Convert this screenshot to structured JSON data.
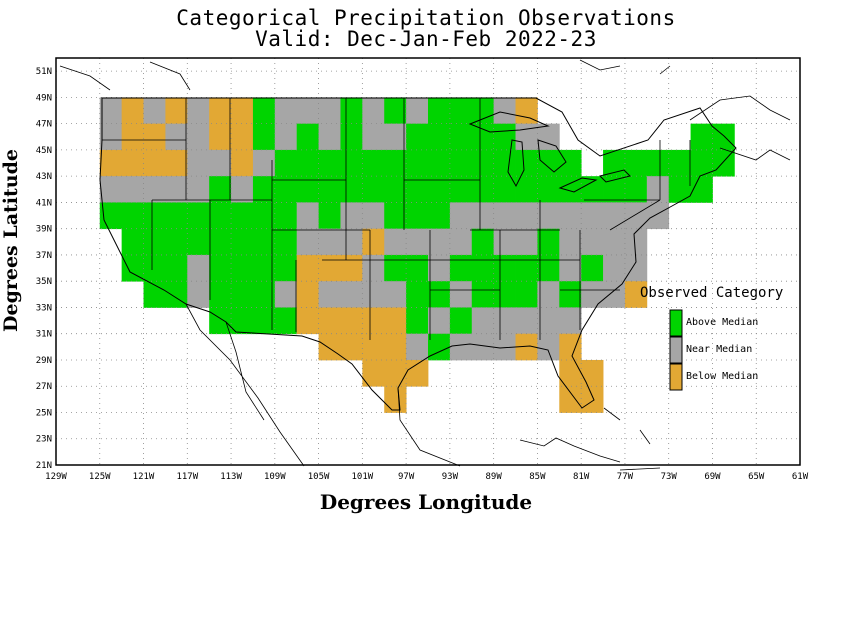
{
  "title_line1": "Categorical Precipitation Observations",
  "title_line2": "Valid: Dec-Jan-Feb 2022-23",
  "xlabel": "Degrees Longitude",
  "ylabel": "Degrees Latitude",
  "x_ticks": [
    "129W",
    "125W",
    "121W",
    "117W",
    "113W",
    "109W",
    "105W",
    "101W",
    "97W",
    "93W",
    "89W",
    "85W",
    "81W",
    "77W",
    "73W",
    "69W",
    "65W",
    "61W"
  ],
  "y_ticks": [
    "51N",
    "49N",
    "47N",
    "45N",
    "43N",
    "41N",
    "39N",
    "37N",
    "35N",
    "33N",
    "31N",
    "29N",
    "27N",
    "25N",
    "23N",
    "21N"
  ],
  "legend": {
    "title": "Observed Category",
    "items": [
      {
        "label": "Above Median",
        "color": "#00d400"
      },
      {
        "label": "Near Median",
        "color": "#a6a6a6"
      },
      {
        "label": "Below Median",
        "color": "#e2a834"
      }
    ]
  },
  "chart_data": {
    "type": "heatmap",
    "grid_resolution_deg": 2,
    "lon_range": [
      -129,
      -61
    ],
    "lat_range": [
      21,
      52
    ],
    "categories": {
      "A": "Above Median",
      "N": "Near Median",
      "B": "Below Median"
    },
    "cells": [
      {
        "lat": 48,
        "lon": -124,
        "cat": "N"
      },
      {
        "lat": 48,
        "lon": -122,
        "cat": "B"
      },
      {
        "lat": 48,
        "lon": -120,
        "cat": "N"
      },
      {
        "lat": 48,
        "lon": -118,
        "cat": "B"
      },
      {
        "lat": 48,
        "lon": -116,
        "cat": "N"
      },
      {
        "lat": 48,
        "lon": -114,
        "cat": "B"
      },
      {
        "lat": 48,
        "lon": -112,
        "cat": "B"
      },
      {
        "lat": 48,
        "lon": -110,
        "cat": "A"
      },
      {
        "lat": 48,
        "lon": -108,
        "cat": "N"
      },
      {
        "lat": 48,
        "lon": -106,
        "cat": "N"
      },
      {
        "lat": 48,
        "lon": -104,
        "cat": "N"
      },
      {
        "lat": 48,
        "lon": -102,
        "cat": "A"
      },
      {
        "lat": 48,
        "lon": -100,
        "cat": "N"
      },
      {
        "lat": 48,
        "lon": -98,
        "cat": "A"
      },
      {
        "lat": 48,
        "lon": -96,
        "cat": "N"
      },
      {
        "lat": 48,
        "lon": -94,
        "cat": "A"
      },
      {
        "lat": 48,
        "lon": -92,
        "cat": "A"
      },
      {
        "lat": 48,
        "lon": -90,
        "cat": "A"
      },
      {
        "lat": 48,
        "lon": -88,
        "cat": "N"
      },
      {
        "lat": 48,
        "lon": -86,
        "cat": "B"
      },
      {
        "lat": 46,
        "lon": -124,
        "cat": "N"
      },
      {
        "lat": 46,
        "lon": -122,
        "cat": "B"
      },
      {
        "lat": 46,
        "lon": -120,
        "cat": "B"
      },
      {
        "lat": 46,
        "lon": -118,
        "cat": "N"
      },
      {
        "lat": 46,
        "lon": -116,
        "cat": "N"
      },
      {
        "lat": 46,
        "lon": -114,
        "cat": "B"
      },
      {
        "lat": 46,
        "lon": -112,
        "cat": "B"
      },
      {
        "lat": 46,
        "lon": -110,
        "cat": "A"
      },
      {
        "lat": 46,
        "lon": -108,
        "cat": "N"
      },
      {
        "lat": 46,
        "lon": -106,
        "cat": "A"
      },
      {
        "lat": 46,
        "lon": -104,
        "cat": "N"
      },
      {
        "lat": 46,
        "lon": -102,
        "cat": "A"
      },
      {
        "lat": 46,
        "lon": -100,
        "cat": "N"
      },
      {
        "lat": 46,
        "lon": -98,
        "cat": "N"
      },
      {
        "lat": 46,
        "lon": -96,
        "cat": "A"
      },
      {
        "lat": 46,
        "lon": -94,
        "cat": "A"
      },
      {
        "lat": 46,
        "lon": -92,
        "cat": "A"
      },
      {
        "lat": 46,
        "lon": -90,
        "cat": "A"
      },
      {
        "lat": 46,
        "lon": -88,
        "cat": "A"
      },
      {
        "lat": 46,
        "lon": -86,
        "cat": "N"
      },
      {
        "lat": 46,
        "lon": -84,
        "cat": "N"
      },
      {
        "lat": 46,
        "lon": -70,
        "cat": "A"
      },
      {
        "lat": 46,
        "lon": -68,
        "cat": "A"
      },
      {
        "lat": 44,
        "lon": -124,
        "cat": "B"
      },
      {
        "lat": 44,
        "lon": -122,
        "cat": "B"
      },
      {
        "lat": 44,
        "lon": -120,
        "cat": "B"
      },
      {
        "lat": 44,
        "lon": -118,
        "cat": "B"
      },
      {
        "lat": 44,
        "lon": -116,
        "cat": "N"
      },
      {
        "lat": 44,
        "lon": -114,
        "cat": "N"
      },
      {
        "lat": 44,
        "lon": -112,
        "cat": "B"
      },
      {
        "lat": 44,
        "lon": -110,
        "cat": "N"
      },
      {
        "lat": 44,
        "lon": -108,
        "cat": "A"
      },
      {
        "lat": 44,
        "lon": -106,
        "cat": "A"
      },
      {
        "lat": 44,
        "lon": -104,
        "cat": "A"
      },
      {
        "lat": 44,
        "lon": -102,
        "cat": "A"
      },
      {
        "lat": 44,
        "lon": -100,
        "cat": "A"
      },
      {
        "lat": 44,
        "lon": -98,
        "cat": "A"
      },
      {
        "lat": 44,
        "lon": -96,
        "cat": "A"
      },
      {
        "lat": 44,
        "lon": -94,
        "cat": "A"
      },
      {
        "lat": 44,
        "lon": -92,
        "cat": "A"
      },
      {
        "lat": 44,
        "lon": -90,
        "cat": "A"
      },
      {
        "lat": 44,
        "lon": -88,
        "cat": "A"
      },
      {
        "lat": 44,
        "lon": -86,
        "cat": "A"
      },
      {
        "lat": 44,
        "lon": -84,
        "cat": "A"
      },
      {
        "lat": 44,
        "lon": -82,
        "cat": "A"
      },
      {
        "lat": 44,
        "lon": -78,
        "cat": "A"
      },
      {
        "lat": 44,
        "lon": -76,
        "cat": "A"
      },
      {
        "lat": 44,
        "lon": -74,
        "cat": "A"
      },
      {
        "lat": 44,
        "lon": -72,
        "cat": "A"
      },
      {
        "lat": 44,
        "lon": -70,
        "cat": "A"
      },
      {
        "lat": 44,
        "lon": -68,
        "cat": "A"
      },
      {
        "lat": 42,
        "lon": -124,
        "cat": "N"
      },
      {
        "lat": 42,
        "lon": -122,
        "cat": "N"
      },
      {
        "lat": 42,
        "lon": -120,
        "cat": "N"
      },
      {
        "lat": 42,
        "lon": -118,
        "cat": "N"
      },
      {
        "lat": 42,
        "lon": -116,
        "cat": "N"
      },
      {
        "lat": 42,
        "lon": -114,
        "cat": "A"
      },
      {
        "lat": 42,
        "lon": -112,
        "cat": "N"
      },
      {
        "lat": 42,
        "lon": -110,
        "cat": "A"
      },
      {
        "lat": 42,
        "lon": -108,
        "cat": "A"
      },
      {
        "lat": 42,
        "lon": -106,
        "cat": "A"
      },
      {
        "lat": 42,
        "lon": -104,
        "cat": "A"
      },
      {
        "lat": 42,
        "lon": -102,
        "cat": "A"
      },
      {
        "lat": 42,
        "lon": -100,
        "cat": "A"
      },
      {
        "lat": 42,
        "lon": -98,
        "cat": "A"
      },
      {
        "lat": 42,
        "lon": -96,
        "cat": "A"
      },
      {
        "lat": 42,
        "lon": -94,
        "cat": "A"
      },
      {
        "lat": 42,
        "lon": -92,
        "cat": "A"
      },
      {
        "lat": 42,
        "lon": -90,
        "cat": "A"
      },
      {
        "lat": 42,
        "lon": -88,
        "cat": "A"
      },
      {
        "lat": 42,
        "lon": -86,
        "cat": "A"
      },
      {
        "lat": 42,
        "lon": -84,
        "cat": "A"
      },
      {
        "lat": 42,
        "lon": -82,
        "cat": "A"
      },
      {
        "lat": 42,
        "lon": -80,
        "cat": "A"
      },
      {
        "lat": 42,
        "lon": -78,
        "cat": "A"
      },
      {
        "lat": 42,
        "lon": -76,
        "cat": "A"
      },
      {
        "lat": 42,
        "lon": -74,
        "cat": "N"
      },
      {
        "lat": 42,
        "lon": -72,
        "cat": "A"
      },
      {
        "lat": 42,
        "lon": -70,
        "cat": "A"
      },
      {
        "lat": 40,
        "lon": -124,
        "cat": "A"
      },
      {
        "lat": 40,
        "lon": -122,
        "cat": "A"
      },
      {
        "lat": 40,
        "lon": -120,
        "cat": "A"
      },
      {
        "lat": 40,
        "lon": -118,
        "cat": "A"
      },
      {
        "lat": 40,
        "lon": -116,
        "cat": "A"
      },
      {
        "lat": 40,
        "lon": -114,
        "cat": "A"
      },
      {
        "lat": 40,
        "lon": -112,
        "cat": "A"
      },
      {
        "lat": 40,
        "lon": -110,
        "cat": "A"
      },
      {
        "lat": 40,
        "lon": -108,
        "cat": "A"
      },
      {
        "lat": 40,
        "lon": -106,
        "cat": "N"
      },
      {
        "lat": 40,
        "lon": -104,
        "cat": "A"
      },
      {
        "lat": 40,
        "lon": -102,
        "cat": "N"
      },
      {
        "lat": 40,
        "lon": -100,
        "cat": "N"
      },
      {
        "lat": 40,
        "lon": -98,
        "cat": "A"
      },
      {
        "lat": 40,
        "lon": -96,
        "cat": "A"
      },
      {
        "lat": 40,
        "lon": -94,
        "cat": "A"
      },
      {
        "lat": 40,
        "lon": -92,
        "cat": "N"
      },
      {
        "lat": 40,
        "lon": -90,
        "cat": "N"
      },
      {
        "lat": 40,
        "lon": -88,
        "cat": "N"
      },
      {
        "lat": 40,
        "lon": -86,
        "cat": "N"
      },
      {
        "lat": 40,
        "lon": -84,
        "cat": "N"
      },
      {
        "lat": 40,
        "lon": -82,
        "cat": "N"
      },
      {
        "lat": 40,
        "lon": -80,
        "cat": "N"
      },
      {
        "lat": 40,
        "lon": -78,
        "cat": "N"
      },
      {
        "lat": 40,
        "lon": -76,
        "cat": "N"
      },
      {
        "lat": 40,
        "lon": -74,
        "cat": "N"
      },
      {
        "lat": 38,
        "lon": -122,
        "cat": "A"
      },
      {
        "lat": 38,
        "lon": -120,
        "cat": "A"
      },
      {
        "lat": 38,
        "lon": -118,
        "cat": "A"
      },
      {
        "lat": 38,
        "lon": -116,
        "cat": "A"
      },
      {
        "lat": 38,
        "lon": -114,
        "cat": "A"
      },
      {
        "lat": 38,
        "lon": -112,
        "cat": "A"
      },
      {
        "lat": 38,
        "lon": -110,
        "cat": "A"
      },
      {
        "lat": 38,
        "lon": -108,
        "cat": "A"
      },
      {
        "lat": 38,
        "lon": -106,
        "cat": "N"
      },
      {
        "lat": 38,
        "lon": -104,
        "cat": "N"
      },
      {
        "lat": 38,
        "lon": -102,
        "cat": "N"
      },
      {
        "lat": 38,
        "lon": -100,
        "cat": "B"
      },
      {
        "lat": 38,
        "lon": -98,
        "cat": "N"
      },
      {
        "lat": 38,
        "lon": -96,
        "cat": "N"
      },
      {
        "lat": 38,
        "lon": -94,
        "cat": "N"
      },
      {
        "lat": 38,
        "lon": -92,
        "cat": "N"
      },
      {
        "lat": 38,
        "lon": -90,
        "cat": "A"
      },
      {
        "lat": 38,
        "lon": -88,
        "cat": "N"
      },
      {
        "lat": 38,
        "lon": -86,
        "cat": "N"
      },
      {
        "lat": 38,
        "lon": -84,
        "cat": "A"
      },
      {
        "lat": 38,
        "lon": -82,
        "cat": "N"
      },
      {
        "lat": 38,
        "lon": -80,
        "cat": "N"
      },
      {
        "lat": 38,
        "lon": -78,
        "cat": "N"
      },
      {
        "lat": 38,
        "lon": -76,
        "cat": "N"
      },
      {
        "lat": 36,
        "lon": -122,
        "cat": "A"
      },
      {
        "lat": 36,
        "lon": -120,
        "cat": "A"
      },
      {
        "lat": 36,
        "lon": -118,
        "cat": "A"
      },
      {
        "lat": 36,
        "lon": -116,
        "cat": "N"
      },
      {
        "lat": 36,
        "lon": -114,
        "cat": "A"
      },
      {
        "lat": 36,
        "lon": -112,
        "cat": "A"
      },
      {
        "lat": 36,
        "lon": -110,
        "cat": "A"
      },
      {
        "lat": 36,
        "lon": -108,
        "cat": "A"
      },
      {
        "lat": 36,
        "lon": -106,
        "cat": "B"
      },
      {
        "lat": 36,
        "lon": -104,
        "cat": "B"
      },
      {
        "lat": 36,
        "lon": -102,
        "cat": "B"
      },
      {
        "lat": 36,
        "lon": -100,
        "cat": "N"
      },
      {
        "lat": 36,
        "lon": -98,
        "cat": "A"
      },
      {
        "lat": 36,
        "lon": -96,
        "cat": "A"
      },
      {
        "lat": 36,
        "lon": -94,
        "cat": "N"
      },
      {
        "lat": 36,
        "lon": -92,
        "cat": "A"
      },
      {
        "lat": 36,
        "lon": -90,
        "cat": "A"
      },
      {
        "lat": 36,
        "lon": -88,
        "cat": "A"
      },
      {
        "lat": 36,
        "lon": -86,
        "cat": "A"
      },
      {
        "lat": 36,
        "lon": -84,
        "cat": "A"
      },
      {
        "lat": 36,
        "lon": -82,
        "cat": "N"
      },
      {
        "lat": 36,
        "lon": -80,
        "cat": "A"
      },
      {
        "lat": 36,
        "lon": -78,
        "cat": "N"
      },
      {
        "lat": 36,
        "lon": -76,
        "cat": "N"
      },
      {
        "lat": 34,
        "lon": -120,
        "cat": "A"
      },
      {
        "lat": 34,
        "lon": -118,
        "cat": "A"
      },
      {
        "lat": 34,
        "lon": -116,
        "cat": "N"
      },
      {
        "lat": 34,
        "lon": -114,
        "cat": "A"
      },
      {
        "lat": 34,
        "lon": -112,
        "cat": "A"
      },
      {
        "lat": 34,
        "lon": -110,
        "cat": "A"
      },
      {
        "lat": 34,
        "lon": -108,
        "cat": "N"
      },
      {
        "lat": 34,
        "lon": -106,
        "cat": "B"
      },
      {
        "lat": 34,
        "lon": -104,
        "cat": "N"
      },
      {
        "lat": 34,
        "lon": -102,
        "cat": "N"
      },
      {
        "lat": 34,
        "lon": -100,
        "cat": "N"
      },
      {
        "lat": 34,
        "lon": -98,
        "cat": "N"
      },
      {
        "lat": 34,
        "lon": -96,
        "cat": "A"
      },
      {
        "lat": 34,
        "lon": -94,
        "cat": "A"
      },
      {
        "lat": 34,
        "lon": -92,
        "cat": "N"
      },
      {
        "lat": 34,
        "lon": -90,
        "cat": "A"
      },
      {
        "lat": 34,
        "lon": -88,
        "cat": "A"
      },
      {
        "lat": 34,
        "lon": -86,
        "cat": "A"
      },
      {
        "lat": 34,
        "lon": -84,
        "cat": "N"
      },
      {
        "lat": 34,
        "lon": -82,
        "cat": "A"
      },
      {
        "lat": 34,
        "lon": -80,
        "cat": "N"
      },
      {
        "lat": 34,
        "lon": -78,
        "cat": "N"
      },
      {
        "lat": 34,
        "lon": -76,
        "cat": "B"
      },
      {
        "lat": 32,
        "lon": -114,
        "cat": "A"
      },
      {
        "lat": 32,
        "lon": -112,
        "cat": "A"
      },
      {
        "lat": 32,
        "lon": -110,
        "cat": "A"
      },
      {
        "lat": 32,
        "lon": -108,
        "cat": "A"
      },
      {
        "lat": 32,
        "lon": -106,
        "cat": "B"
      },
      {
        "lat": 32,
        "lon": -104,
        "cat": "B"
      },
      {
        "lat": 32,
        "lon": -102,
        "cat": "B"
      },
      {
        "lat": 32,
        "lon": -100,
        "cat": "B"
      },
      {
        "lat": 32,
        "lon": -98,
        "cat": "B"
      },
      {
        "lat": 32,
        "lon": -96,
        "cat": "A"
      },
      {
        "lat": 32,
        "lon": -94,
        "cat": "N"
      },
      {
        "lat": 32,
        "lon": -92,
        "cat": "A"
      },
      {
        "lat": 32,
        "lon": -90,
        "cat": "N"
      },
      {
        "lat": 32,
        "lon": -88,
        "cat": "N"
      },
      {
        "lat": 32,
        "lon": -86,
        "cat": "N"
      },
      {
        "lat": 32,
        "lon": -84,
        "cat": "N"
      },
      {
        "lat": 32,
        "lon": -82,
        "cat": "N"
      },
      {
        "lat": 30,
        "lon": -104,
        "cat": "B"
      },
      {
        "lat": 30,
        "lon": -102,
        "cat": "B"
      },
      {
        "lat": 30,
        "lon": -100,
        "cat": "B"
      },
      {
        "lat": 30,
        "lon": -98,
        "cat": "B"
      },
      {
        "lat": 30,
        "lon": -96,
        "cat": "N"
      },
      {
        "lat": 30,
        "lon": -94,
        "cat": "A"
      },
      {
        "lat": 30,
        "lon": -92,
        "cat": "N"
      },
      {
        "lat": 30,
        "lon": -90,
        "cat": "N"
      },
      {
        "lat": 30,
        "lon": -88,
        "cat": "N"
      },
      {
        "lat": 30,
        "lon": -86,
        "cat": "B"
      },
      {
        "lat": 30,
        "lon": -84,
        "cat": "N"
      },
      {
        "lat": 30,
        "lon": -82,
        "cat": "B"
      },
      {
        "lat": 28,
        "lon": -100,
        "cat": "B"
      },
      {
        "lat": 28,
        "lon": -98,
        "cat": "B"
      },
      {
        "lat": 28,
        "lon": -96,
        "cat": "B"
      },
      {
        "lat": 28,
        "lon": -82,
        "cat": "B"
      },
      {
        "lat": 28,
        "lon": -80,
        "cat": "B"
      },
      {
        "lat": 26,
        "lon": -98,
        "cat": "B"
      },
      {
        "lat": 26,
        "lon": -82,
        "cat": "B"
      },
      {
        "lat": 26,
        "lon": -80,
        "cat": "B"
      }
    ]
  }
}
